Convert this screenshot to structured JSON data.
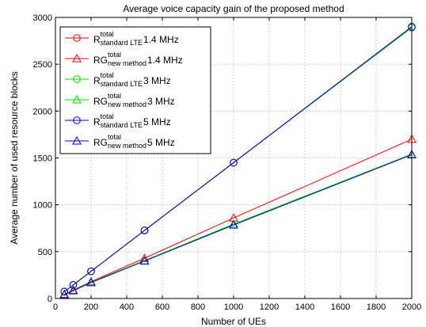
{
  "chart_data": {
    "type": "line",
    "title": "Average voice capacity gain of the proposed method",
    "xlabel": "Number of UEs",
    "ylabel": "Average number of used resource blocks",
    "xlim": [
      0,
      2000
    ],
    "ylim": [
      0,
      3000
    ],
    "xticks": [
      0,
      200,
      400,
      600,
      800,
      1000,
      1200,
      1400,
      1600,
      1800,
      2000
    ],
    "yticks": [
      0,
      500,
      1000,
      1500,
      2000,
      2500,
      3000
    ],
    "grid": true,
    "legend_position": "top-left",
    "x": [
      50,
      100,
      200,
      500,
      1000,
      2000
    ],
    "series": [
      {
        "base": "R",
        "sup": "total",
        "sub": "standard LTE",
        "suffix": "1.4 MHz",
        "color": "#ff0000",
        "marker": "circle",
        "values": [
          73,
          145,
          290,
          725,
          1450,
          2900
        ]
      },
      {
        "base": "RG",
        "sup": "total",
        "sub": "new method",
        "suffix": "1.4 MHz",
        "color": "#ff0000",
        "marker": "triangle",
        "values": [
          45,
          90,
          180,
          430,
          860,
          1700
        ]
      },
      {
        "base": "R",
        "sup": "total",
        "sub": "standard LTE",
        "suffix": "3 MHz",
        "color": "#00dd00",
        "marker": "circle",
        "values": [
          72,
          145,
          290,
          725,
          1450,
          2890
        ]
      },
      {
        "base": "RG",
        "sup": "total",
        "sub": "new method",
        "suffix": "3 MHz",
        "color": "#00dd00",
        "marker": "triangle",
        "values": [
          42,
          85,
          175,
          405,
          795,
          1540
        ]
      },
      {
        "base": "R",
        "sup": "total",
        "sub": "standard LTE",
        "suffix": "5 MHz",
        "color": "#0000cc",
        "marker": "circle",
        "values": [
          73,
          145,
          290,
          727,
          1450,
          2900
        ]
      },
      {
        "base": "RG",
        "sup": "total",
        "sub": "new method",
        "suffix": "5 MHz",
        "color": "#0000cc",
        "marker": "triangle",
        "values": [
          41,
          83,
          170,
          400,
          785,
          1535
        ]
      }
    ]
  }
}
